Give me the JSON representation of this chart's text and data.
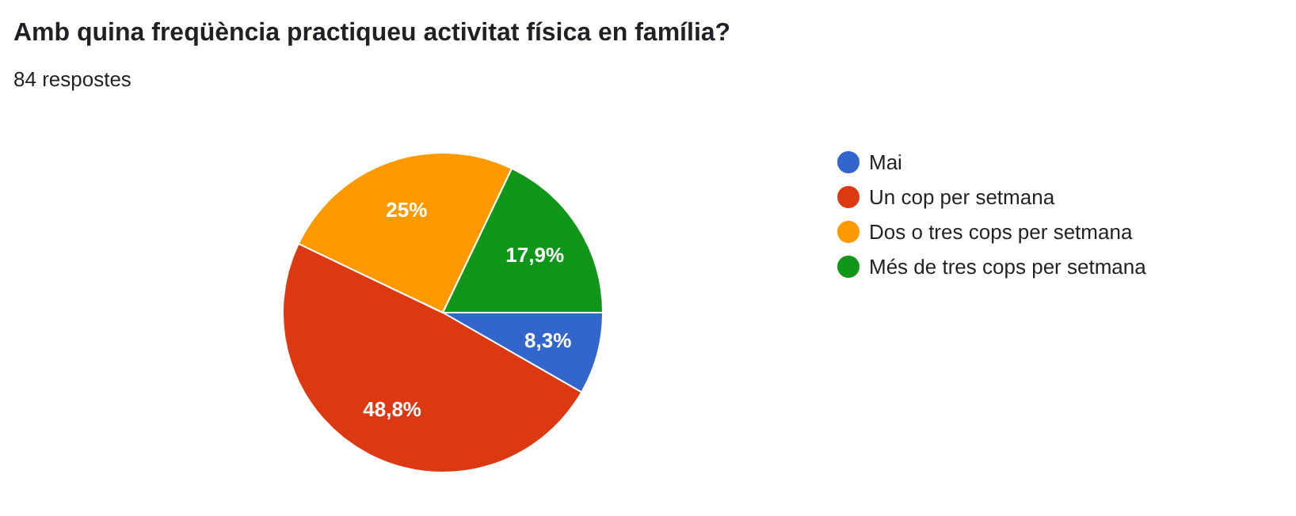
{
  "chart_data": {
    "type": "pie",
    "title": "Amb quina freqüència practiqueu activitat física en família?",
    "subtitle": "84 respostes",
    "categories": [
      "Mai",
      "Un cop per setmana",
      "Dos o tres cops per setmana",
      "Més de tres cops per setmana"
    ],
    "values": [
      8.3,
      48.8,
      25,
      17.9
    ],
    "colors": [
      "#3366cc",
      "#dc3912",
      "#ff9900",
      "#109618"
    ],
    "value_labels": [
      "8,3%",
      "48,8%",
      "25%",
      "17,9%"
    ],
    "legend": "right"
  }
}
